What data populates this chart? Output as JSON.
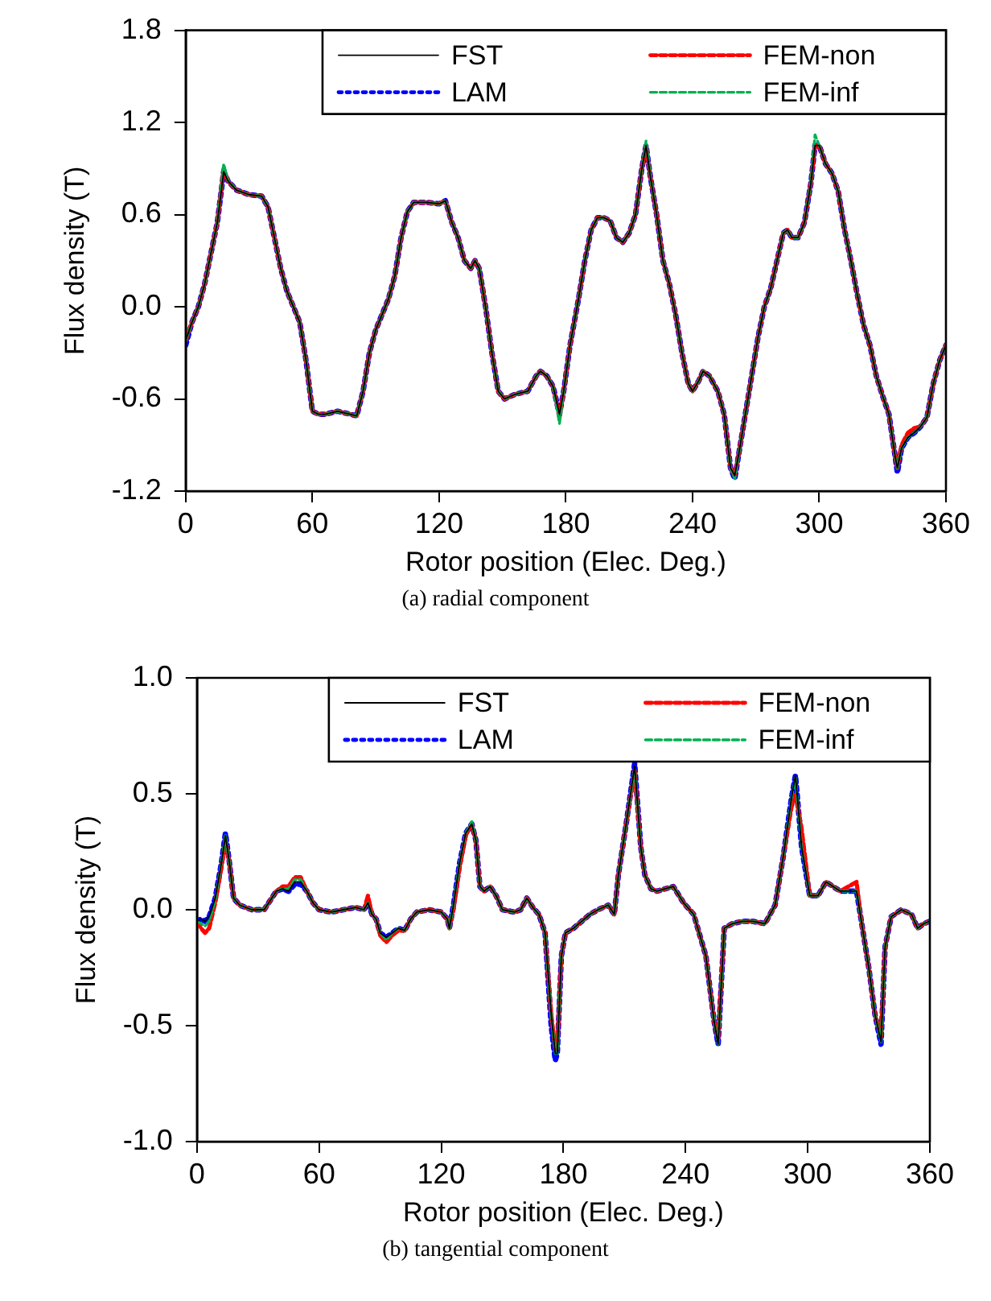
{
  "chart_data": [
    {
      "type": "line",
      "xlabel": "Rotor position (Elec. Deg.)",
      "ylabel": "Flux density (T)",
      "annotations": [
        "(a) radial component"
      ],
      "xlim": [
        0,
        360
      ],
      "xticks": [
        0,
        60,
        120,
        180,
        240,
        300,
        360
      ],
      "ylim": [
        -1.2,
        1.8
      ],
      "yticks": [
        {
          "value": -1.2,
          "label": "-1.2"
        },
        {
          "value": -0.6,
          "label": "-0.6"
        },
        {
          "value": 0,
          "label": "0.0"
        },
        0.6,
        1.2,
        1.8
      ],
      "grid": false,
      "legend": "top right",
      "marker": "none",
      "x": [
        0,
        3,
        6,
        9,
        12,
        15,
        18,
        20,
        24,
        30,
        36,
        39,
        42,
        45,
        48,
        51,
        54,
        57,
        60,
        63,
        66,
        72,
        78,
        81,
        84,
        87,
        90,
        93,
        96,
        99,
        102,
        105,
        108,
        114,
        120,
        123,
        126,
        129,
        132,
        135,
        137,
        139,
        142,
        145,
        148,
        151,
        156,
        162,
        166,
        168,
        171,
        174,
        177,
        179,
        182,
        186,
        189,
        192,
        195,
        198,
        201,
        204,
        207,
        210,
        213,
        216,
        218,
        220,
        223,
        226,
        229,
        232,
        235,
        238,
        240,
        243,
        245,
        248,
        252,
        255,
        258,
        260,
        262,
        265,
        268,
        271,
        274,
        277,
        280,
        283,
        285,
        287,
        290,
        293,
        296,
        298,
        300,
        303,
        306,
        309,
        312,
        315,
        318,
        321,
        324,
        327,
        330,
        333,
        336,
        337,
        339,
        342,
        345,
        348,
        351,
        354,
        357,
        360
      ],
      "series": [
        {
          "name": "FST",
          "color": "#000000",
          "line_style": "solid",
          "values": [
            -0.22,
            -0.1,
            0.0,
            0.15,
            0.35,
            0.55,
            0.88,
            0.82,
            0.76,
            0.73,
            0.72,
            0.65,
            0.45,
            0.25,
            0.1,
            0.0,
            -0.1,
            -0.35,
            -0.68,
            -0.7,
            -0.7,
            -0.68,
            -0.7,
            -0.71,
            -0.55,
            -0.3,
            -0.15,
            -0.05,
            0.05,
            0.2,
            0.45,
            0.62,
            0.68,
            0.68,
            0.67,
            0.69,
            0.55,
            0.45,
            0.3,
            0.25,
            0.3,
            0.25,
            0.0,
            -0.3,
            -0.55,
            -0.6,
            -0.57,
            -0.55,
            -0.45,
            -0.42,
            -0.45,
            -0.52,
            -0.7,
            -0.55,
            -0.25,
            0.05,
            0.3,
            0.5,
            0.58,
            0.58,
            0.56,
            0.45,
            0.42,
            0.48,
            0.6,
            0.9,
            1.05,
            0.85,
            0.6,
            0.3,
            0.15,
            -0.05,
            -0.3,
            -0.5,
            -0.55,
            -0.48,
            -0.42,
            -0.45,
            -0.55,
            -0.7,
            -1.05,
            -1.1,
            -0.95,
            -0.7,
            -0.45,
            -0.2,
            0.0,
            0.12,
            0.3,
            0.48,
            0.5,
            0.45,
            0.45,
            0.55,
            0.8,
            1.05,
            1.05,
            0.93,
            0.87,
            0.75,
            0.5,
            0.3,
            0.08,
            -0.12,
            -0.25,
            -0.45,
            -0.58,
            -0.7,
            -0.98,
            -1.05,
            -0.92,
            -0.85,
            -0.82,
            -0.78,
            -0.72,
            -0.5,
            -0.35,
            -0.25
          ]
        },
        {
          "name": "LAM",
          "color": "#0000ff",
          "line_style": "dotted",
          "values": [
            -0.25,
            -0.1,
            0.0,
            0.15,
            0.35,
            0.55,
            0.88,
            0.82,
            0.76,
            0.73,
            0.72,
            0.65,
            0.45,
            0.25,
            0.1,
            0.0,
            -0.1,
            -0.35,
            -0.68,
            -0.7,
            -0.7,
            -0.68,
            -0.7,
            -0.71,
            -0.55,
            -0.3,
            -0.15,
            -0.05,
            0.05,
            0.2,
            0.45,
            0.62,
            0.68,
            0.68,
            0.67,
            0.69,
            0.55,
            0.45,
            0.3,
            0.25,
            0.3,
            0.25,
            0.0,
            -0.3,
            -0.55,
            -0.6,
            -0.57,
            -0.55,
            -0.45,
            -0.42,
            -0.45,
            -0.52,
            -0.7,
            -0.55,
            -0.25,
            0.05,
            0.3,
            0.5,
            0.58,
            0.58,
            0.56,
            0.45,
            0.42,
            0.48,
            0.6,
            0.9,
            1.05,
            0.85,
            0.6,
            0.3,
            0.15,
            -0.05,
            -0.3,
            -0.5,
            -0.55,
            -0.48,
            -0.42,
            -0.45,
            -0.55,
            -0.7,
            -1.05,
            -1.12,
            -0.95,
            -0.7,
            -0.45,
            -0.2,
            0.0,
            0.12,
            0.3,
            0.48,
            0.5,
            0.45,
            0.45,
            0.55,
            0.8,
            1.05,
            1.05,
            0.93,
            0.87,
            0.75,
            0.5,
            0.3,
            0.08,
            -0.12,
            -0.25,
            -0.45,
            -0.58,
            -0.7,
            -0.98,
            -1.08,
            -0.92,
            -0.85,
            -0.82,
            -0.78,
            -0.72,
            -0.5,
            -0.35,
            -0.25
          ]
        },
        {
          "name": "FEM-non",
          "color": "#ff0000",
          "line_style": "dashed",
          "values": [
            -0.22,
            -0.1,
            0.0,
            0.15,
            0.35,
            0.55,
            0.9,
            0.82,
            0.76,
            0.73,
            0.72,
            0.65,
            0.45,
            0.25,
            0.1,
            0.0,
            -0.1,
            -0.35,
            -0.68,
            -0.7,
            -0.7,
            -0.68,
            -0.7,
            -0.71,
            -0.55,
            -0.3,
            -0.15,
            -0.05,
            0.05,
            0.2,
            0.45,
            0.62,
            0.68,
            0.68,
            0.67,
            0.69,
            0.55,
            0.45,
            0.3,
            0.25,
            0.3,
            0.25,
            0.0,
            -0.3,
            -0.55,
            -0.6,
            -0.57,
            -0.55,
            -0.45,
            -0.42,
            -0.45,
            -0.52,
            -0.72,
            -0.55,
            -0.25,
            0.05,
            0.3,
            0.5,
            0.58,
            0.58,
            0.56,
            0.45,
            0.42,
            0.48,
            0.6,
            0.9,
            1.05,
            0.85,
            0.6,
            0.3,
            0.15,
            -0.05,
            -0.3,
            -0.5,
            -0.55,
            -0.48,
            -0.42,
            -0.45,
            -0.55,
            -0.7,
            -1.05,
            -1.1,
            -0.95,
            -0.7,
            -0.45,
            -0.2,
            0.0,
            0.12,
            0.3,
            0.48,
            0.5,
            0.45,
            0.45,
            0.55,
            0.8,
            1.05,
            1.05,
            0.93,
            0.87,
            0.75,
            0.5,
            0.3,
            0.08,
            -0.12,
            -0.25,
            -0.45,
            -0.58,
            -0.7,
            -0.98,
            -1.05,
            -0.9,
            -0.82,
            -0.79,
            -0.78,
            -0.72,
            -0.5,
            -0.35,
            -0.25
          ]
        },
        {
          "name": "FEM-inf",
          "color": "#00b050",
          "line_style": "dashed",
          "values": [
            -0.22,
            -0.1,
            0.0,
            0.15,
            0.35,
            0.55,
            0.93,
            0.82,
            0.76,
            0.73,
            0.72,
            0.65,
            0.45,
            0.25,
            0.1,
            0.0,
            -0.1,
            -0.35,
            -0.68,
            -0.7,
            -0.7,
            -0.68,
            -0.7,
            -0.71,
            -0.55,
            -0.3,
            -0.15,
            -0.05,
            0.05,
            0.2,
            0.45,
            0.62,
            0.68,
            0.68,
            0.67,
            0.69,
            0.55,
            0.45,
            0.3,
            0.25,
            0.3,
            0.25,
            0.0,
            -0.3,
            -0.55,
            -0.6,
            -0.57,
            -0.55,
            -0.45,
            -0.42,
            -0.45,
            -0.52,
            -0.76,
            -0.55,
            -0.25,
            0.05,
            0.3,
            0.5,
            0.58,
            0.58,
            0.56,
            0.45,
            0.42,
            0.48,
            0.6,
            0.9,
            1.08,
            0.85,
            0.6,
            0.3,
            0.15,
            -0.05,
            -0.3,
            -0.5,
            -0.55,
            -0.48,
            -0.42,
            -0.45,
            -0.55,
            -0.7,
            -1.05,
            -1.12,
            -0.95,
            -0.7,
            -0.45,
            -0.2,
            0.0,
            0.12,
            0.3,
            0.48,
            0.5,
            0.45,
            0.45,
            0.55,
            0.8,
            1.12,
            1.05,
            0.93,
            0.87,
            0.75,
            0.5,
            0.3,
            0.08,
            -0.12,
            -0.25,
            -0.45,
            -0.58,
            -0.7,
            -0.98,
            -1.05,
            -0.92,
            -0.85,
            -0.82,
            -0.78,
            -0.72,
            -0.5,
            -0.35,
            -0.25
          ]
        }
      ]
    },
    {
      "type": "line",
      "xlabel": "Rotor position (Elec. Deg.)",
      "ylabel": "Flux density (T)",
      "annotations": [
        "(b) tangential component"
      ],
      "xlim": [
        0,
        360
      ],
      "xticks": [
        0,
        60,
        120,
        180,
        240,
        300,
        360
      ],
      "ylim": [
        -1,
        1
      ],
      "yticks": [
        {
          "value": -1,
          "label": "-1.0"
        },
        -0.5,
        {
          "value": 0,
          "label": "0.0"
        },
        0.5,
        {
          "value": 1,
          "label": "1.0"
        }
      ],
      "grid": false,
      "legend": "top right",
      "marker": "none",
      "x": [
        0,
        2,
        4,
        6,
        9,
        12,
        14,
        16,
        18,
        21,
        27,
        33,
        39,
        42,
        45,
        48,
        51,
        54,
        57,
        60,
        66,
        72,
        78,
        82,
        84,
        86,
        88,
        90,
        93,
        96,
        99,
        102,
        105,
        108,
        114,
        120,
        123,
        124,
        126,
        129,
        132,
        135,
        137,
        139,
        141,
        144,
        147,
        150,
        156,
        159,
        162,
        165,
        168,
        171,
        174,
        176,
        177,
        179,
        181,
        185,
        189,
        193,
        197,
        202,
        205,
        207,
        211,
        215,
        218,
        220,
        223,
        226,
        234,
        239,
        244,
        250,
        254,
        256,
        259,
        263,
        268,
        273,
        279,
        284,
        288,
        292,
        294,
        297,
        301,
        305,
        309,
        316,
        324,
        326,
        330,
        333,
        336,
        338,
        341,
        346,
        351,
        354,
        357,
        360
      ],
      "series": [
        {
          "name": "FST",
          "color": "#000000",
          "line_style": "solid",
          "values": [
            -0.05,
            -0.04,
            -0.05,
            -0.03,
            0.05,
            0.2,
            0.32,
            0.2,
            0.05,
            0.02,
            0.0,
            0.0,
            0.08,
            0.09,
            0.08,
            0.12,
            0.12,
            0.08,
            0.03,
            0.0,
            -0.01,
            0.0,
            0.01,
            0.0,
            0.03,
            -0.02,
            -0.04,
            -0.1,
            -0.12,
            -0.1,
            -0.08,
            -0.09,
            -0.04,
            -0.01,
            0.0,
            -0.01,
            -0.04,
            -0.08,
            0.02,
            0.2,
            0.33,
            0.37,
            0.3,
            0.1,
            0.08,
            0.1,
            0.06,
            0.0,
            -0.01,
            0.0,
            0.05,
            0.01,
            -0.02,
            -0.1,
            -0.45,
            -0.62,
            -0.62,
            -0.2,
            -0.1,
            -0.08,
            -0.05,
            -0.02,
            0.0,
            0.02,
            -0.02,
            0.15,
            0.38,
            0.62,
            0.27,
            0.15,
            0.09,
            0.08,
            0.1,
            0.03,
            -0.02,
            -0.2,
            -0.48,
            -0.58,
            -0.08,
            -0.06,
            -0.05,
            -0.05,
            -0.06,
            0.02,
            0.23,
            0.48,
            0.58,
            0.27,
            0.06,
            0.06,
            0.12,
            0.08,
            0.08,
            -0.03,
            -0.25,
            -0.45,
            -0.57,
            -0.16,
            -0.03,
            0.0,
            -0.02,
            -0.08,
            -0.06,
            -0.05
          ]
        },
        {
          "name": "LAM",
          "color": "#0000ff",
          "line_style": "dotted",
          "values": [
            -0.05,
            -0.04,
            -0.05,
            -0.03,
            0.05,
            0.2,
            0.33,
            0.2,
            0.05,
            0.02,
            0.0,
            0.0,
            0.08,
            0.09,
            0.08,
            0.11,
            0.11,
            0.08,
            0.03,
            0.0,
            -0.01,
            0.0,
            0.01,
            0.0,
            0.03,
            -0.02,
            -0.04,
            -0.1,
            -0.12,
            -0.1,
            -0.08,
            -0.09,
            -0.04,
            -0.01,
            0.0,
            -0.01,
            -0.04,
            -0.08,
            0.02,
            0.2,
            0.33,
            0.37,
            0.3,
            0.1,
            0.08,
            0.1,
            0.06,
            0.0,
            -0.01,
            0.0,
            0.05,
            0.01,
            -0.02,
            -0.1,
            -0.5,
            -0.65,
            -0.62,
            -0.2,
            -0.1,
            -0.08,
            -0.05,
            -0.02,
            0.0,
            0.02,
            -0.02,
            0.15,
            0.38,
            0.63,
            0.27,
            0.15,
            0.09,
            0.08,
            0.1,
            0.03,
            -0.02,
            -0.2,
            -0.48,
            -0.58,
            -0.08,
            -0.06,
            -0.05,
            -0.05,
            -0.06,
            0.02,
            0.23,
            0.48,
            0.58,
            0.27,
            0.06,
            0.06,
            0.12,
            0.08,
            0.08,
            -0.03,
            -0.25,
            -0.45,
            -0.58,
            -0.16,
            -0.03,
            0.0,
            -0.02,
            -0.08,
            -0.06,
            -0.05
          ]
        },
        {
          "name": "FEM-non",
          "color": "#ff0000",
          "line_style": "dashed",
          "values": [
            -0.05,
            -0.08,
            -0.1,
            -0.08,
            0.03,
            0.18,
            0.3,
            0.2,
            0.05,
            0.02,
            0.0,
            0.0,
            0.08,
            0.1,
            0.1,
            0.14,
            0.14,
            0.08,
            0.03,
            0.0,
            -0.01,
            0.0,
            0.01,
            0.0,
            0.06,
            -0.02,
            -0.04,
            -0.11,
            -0.14,
            -0.11,
            -0.09,
            -0.09,
            -0.04,
            -0.01,
            0.0,
            -0.01,
            -0.04,
            -0.08,
            0.0,
            0.18,
            0.32,
            0.37,
            0.3,
            0.1,
            0.08,
            0.1,
            0.06,
            0.0,
            -0.01,
            0.0,
            0.05,
            0.01,
            -0.02,
            -0.1,
            -0.45,
            -0.6,
            -0.6,
            -0.2,
            -0.1,
            -0.08,
            -0.05,
            -0.02,
            0.0,
            0.02,
            -0.02,
            0.15,
            0.38,
            0.6,
            0.27,
            0.15,
            0.09,
            0.08,
            0.1,
            0.03,
            -0.02,
            -0.2,
            -0.48,
            -0.56,
            -0.08,
            -0.06,
            -0.05,
            -0.05,
            -0.06,
            0.02,
            0.23,
            0.44,
            0.5,
            0.35,
            0.06,
            0.06,
            0.12,
            0.08,
            0.12,
            -0.03,
            -0.25,
            -0.45,
            -0.55,
            -0.16,
            -0.03,
            0.0,
            -0.02,
            -0.08,
            -0.06,
            -0.05
          ]
        },
        {
          "name": "FEM-inf",
          "color": "#00b050",
          "line_style": "dashed",
          "values": [
            -0.05,
            -0.06,
            -0.07,
            -0.05,
            0.04,
            0.2,
            0.32,
            0.2,
            0.05,
            0.02,
            0.0,
            0.0,
            0.08,
            0.09,
            0.09,
            0.13,
            0.13,
            0.08,
            0.03,
            0.0,
            -0.01,
            0.0,
            0.01,
            0.0,
            0.03,
            -0.02,
            -0.04,
            -0.1,
            -0.13,
            -0.1,
            -0.08,
            -0.09,
            -0.04,
            -0.01,
            0.0,
            -0.01,
            -0.04,
            -0.08,
            0.02,
            0.2,
            0.33,
            0.38,
            0.3,
            0.1,
            0.08,
            0.1,
            0.06,
            0.0,
            -0.01,
            0.0,
            0.05,
            0.01,
            -0.02,
            -0.1,
            -0.45,
            -0.62,
            -0.62,
            -0.2,
            -0.1,
            -0.08,
            -0.05,
            -0.02,
            0.0,
            0.02,
            -0.02,
            0.15,
            0.38,
            0.61,
            0.27,
            0.15,
            0.09,
            0.08,
            0.1,
            0.03,
            -0.02,
            -0.2,
            -0.48,
            -0.58,
            -0.08,
            -0.06,
            -0.05,
            -0.05,
            -0.06,
            0.02,
            0.23,
            0.48,
            0.57,
            0.27,
            0.06,
            0.06,
            0.12,
            0.08,
            0.08,
            -0.03,
            -0.25,
            -0.45,
            -0.57,
            -0.16,
            -0.03,
            0.0,
            -0.02,
            -0.08,
            -0.06,
            -0.05
          ]
        }
      ]
    }
  ]
}
